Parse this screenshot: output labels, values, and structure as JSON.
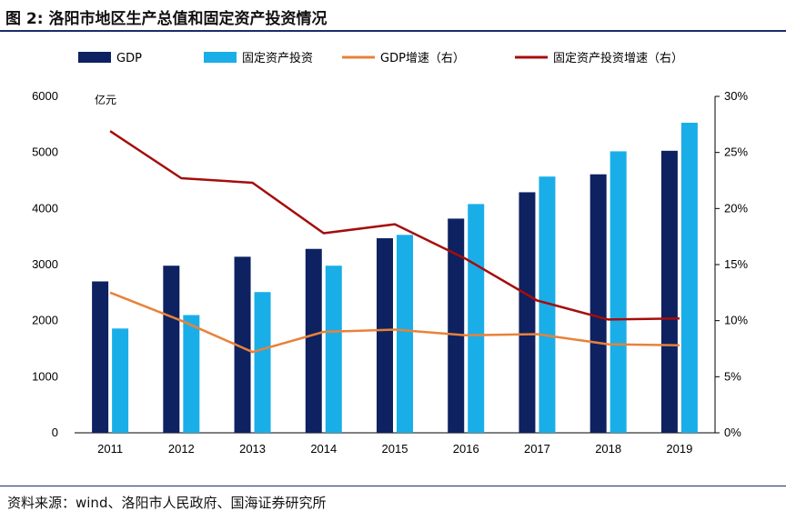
{
  "header": {
    "figure_label": "图 2:",
    "title": "洛阳市地区生产总值和固定资产投资情况"
  },
  "footer": {
    "source": "资料来源：wind、洛阳市人民政府、国海证券研究所"
  },
  "chart_data": {
    "type": "bar",
    "title": "洛阳市地区生产总值和固定资产投资情况",
    "categories": [
      "2011",
      "2012",
      "2013",
      "2014",
      "2015",
      "2016",
      "2017",
      "2018",
      "2019"
    ],
    "y_left_unit": "亿元",
    "y_left_ticks": [
      "0",
      "1000",
      "2000",
      "3000",
      "4000",
      "5000",
      "6000"
    ],
    "y_left_lim": [
      0,
      6000
    ],
    "y_right_ticks": [
      "0%",
      "5%",
      "10%",
      "15%",
      "20%",
      "25%",
      "30%"
    ],
    "y_right_lim": [
      0,
      30
    ],
    "legend_position": "top",
    "grid": false,
    "series": [
      {
        "name": "GDP",
        "type": "bar",
        "axis": "left",
        "color": "#0e2160",
        "values": [
          2700,
          2980,
          3140,
          3280,
          3470,
          3820,
          4290,
          4610,
          5030
        ]
      },
      {
        "name": "固定资产投资",
        "type": "bar",
        "axis": "left",
        "color": "#1aaee8",
        "values": [
          1860,
          2100,
          2510,
          2980,
          3530,
          4080,
          4570,
          5020,
          5530
        ]
      },
      {
        "name": "GDP增速（右）",
        "type": "line",
        "axis": "right",
        "color": "#e8823a",
        "values": [
          12.5,
          10.0,
          7.2,
          9.0,
          9.2,
          8.7,
          8.8,
          7.9,
          7.8
        ]
      },
      {
        "name": "固定资产投资增速（右）",
        "type": "line",
        "axis": "right",
        "color": "#a50d0d",
        "values": [
          26.9,
          22.7,
          22.3,
          17.8,
          18.6,
          15.5,
          11.8,
          10.1,
          10.2
        ]
      }
    ]
  }
}
